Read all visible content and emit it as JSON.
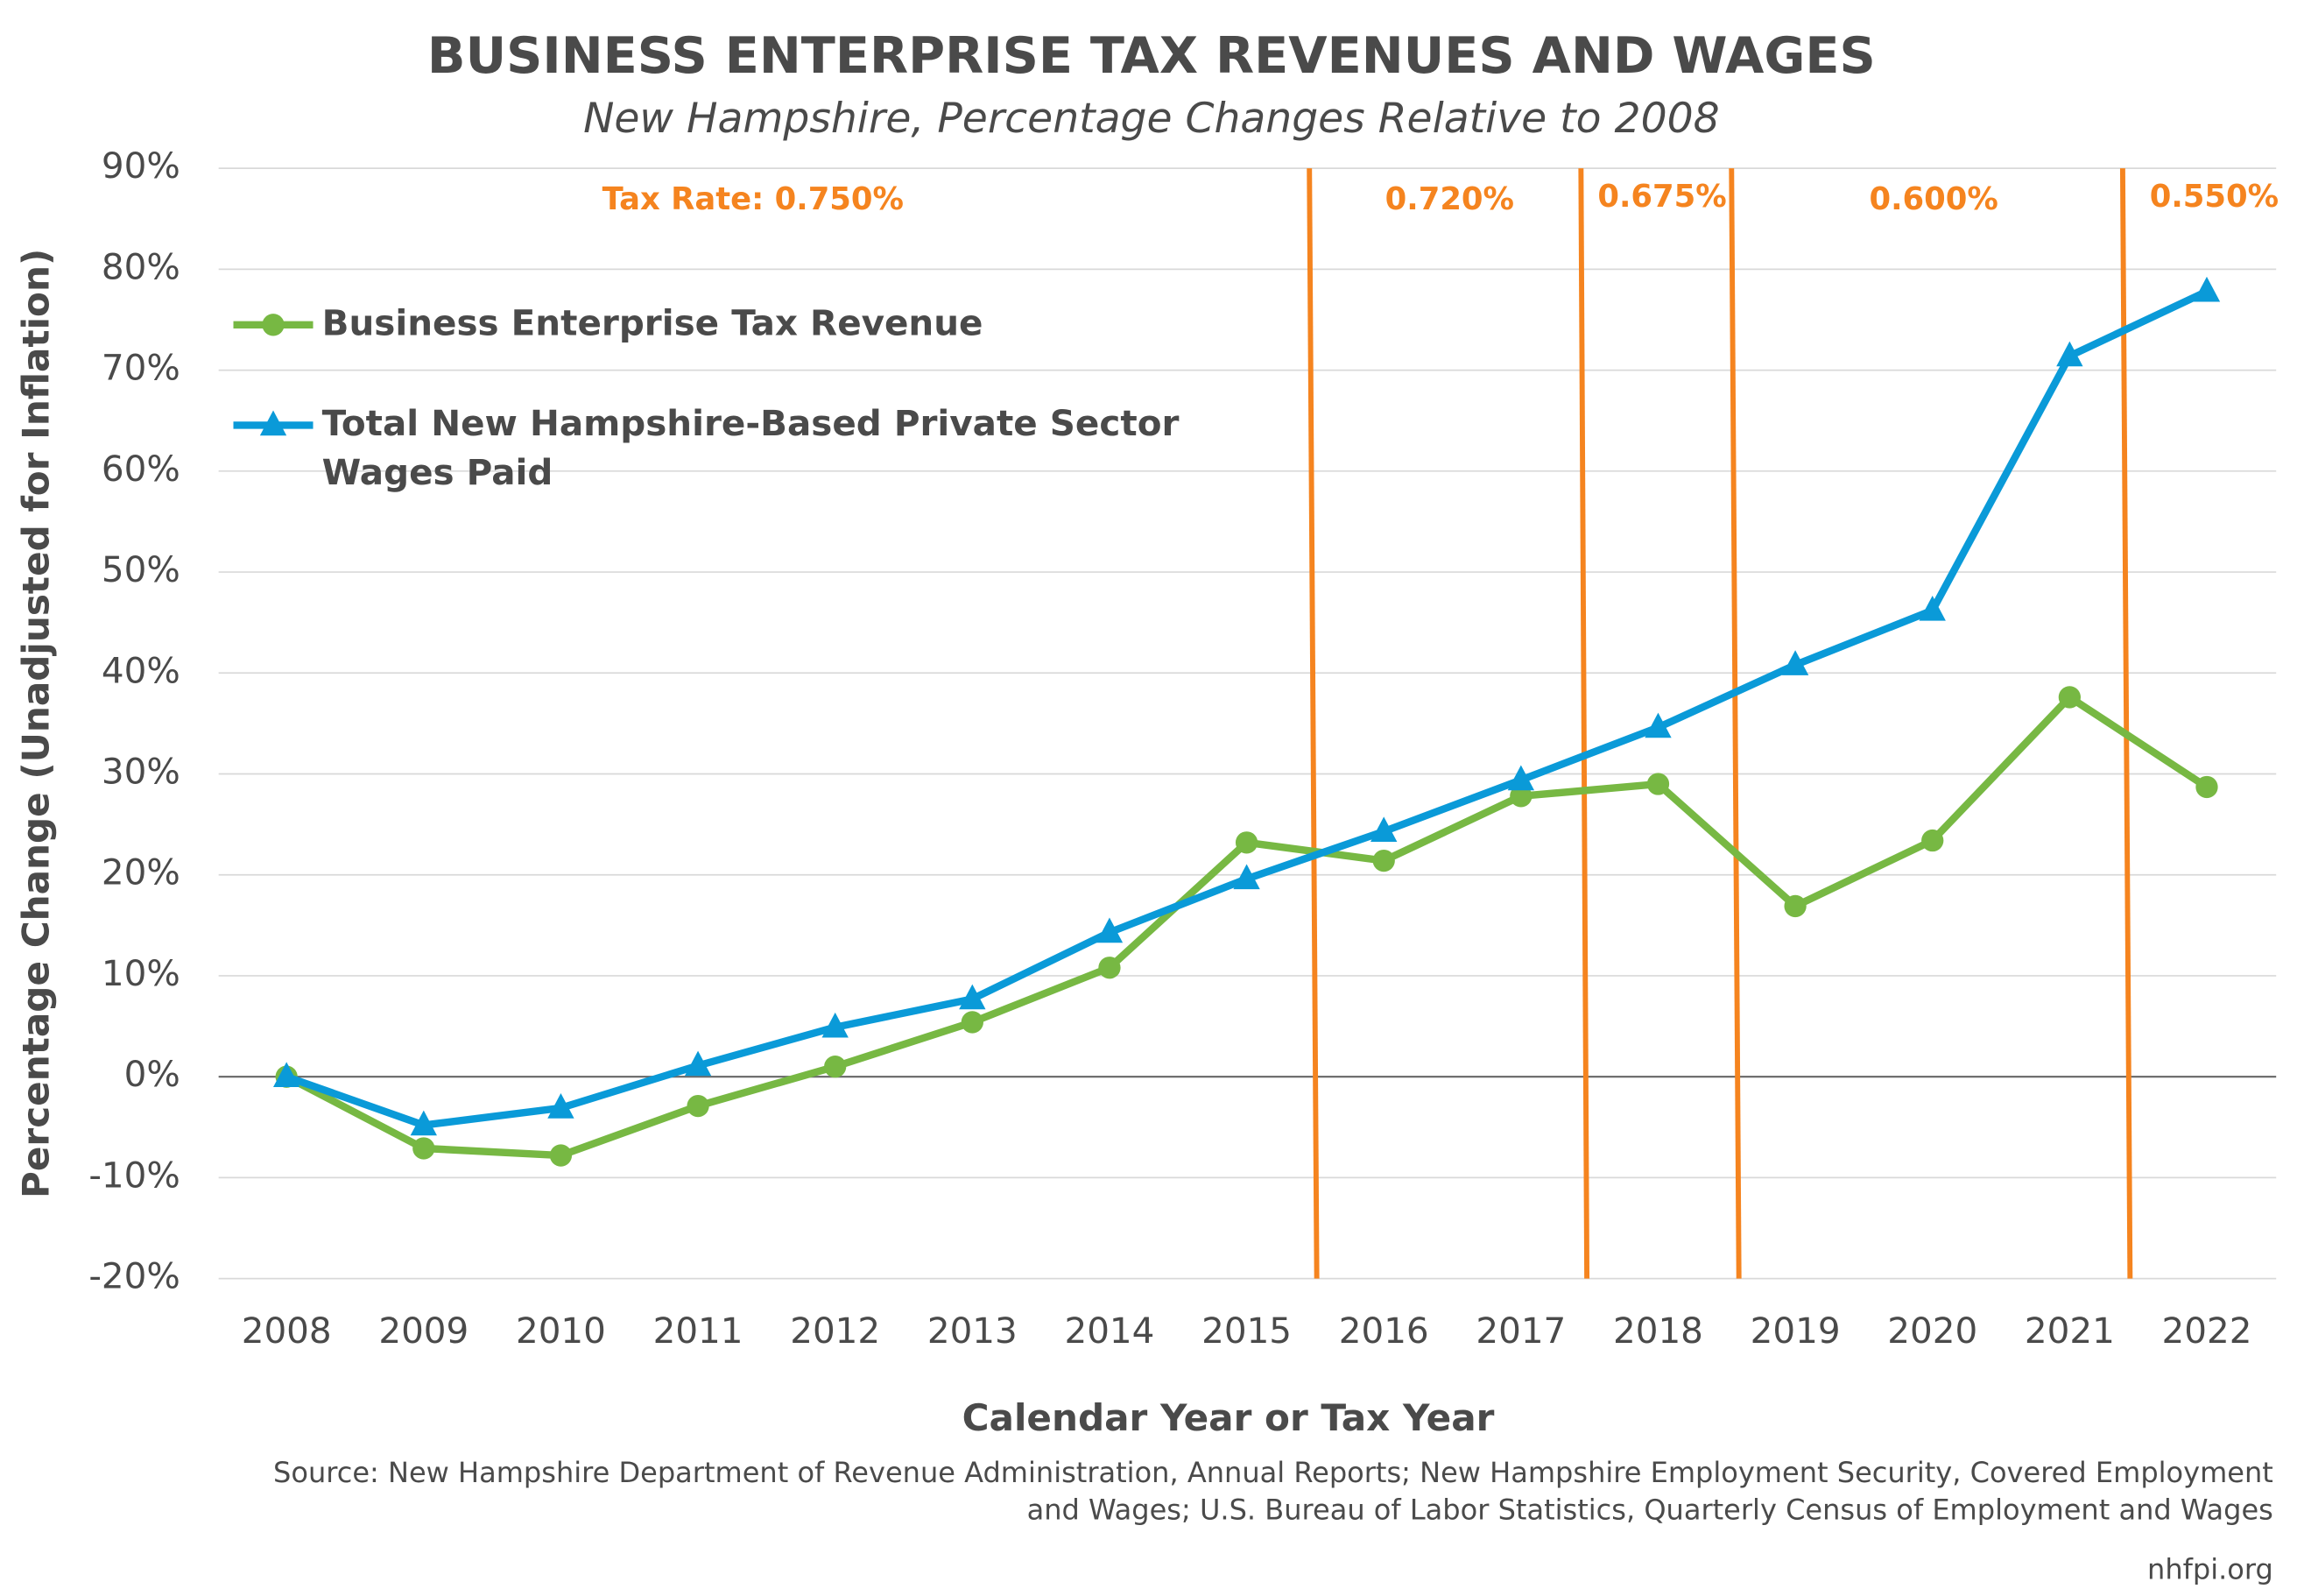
{
  "chart_data": {
    "type": "line",
    "title": "BUSINESS ENTERPRISE TAX REVENUES AND WAGES",
    "subtitle": "New Hampshire, Percentage Changes Relative to 2008",
    "x_label": "Calendar Year or Tax Year",
    "y_label": "Percentage Change (Unadjusted for Inflation)",
    "source": "Source: New Hampshire Department of Revenue Administration, Annual Reports; New Hampshire Employment Security, Covered Employment and Wages; U.S. Bureau of Labor Statistics, Quarterly Census of Employment and Wages",
    "credit": "nhfpi.org",
    "annotations": [
      "Tax Rate: 0.750%",
      "0.720%",
      "0.675%",
      "0.600%",
      "0.550%"
    ],
    "annotation_color": "#f5841f",
    "categories": [
      "2008",
      "2009",
      "2010",
      "2011",
      "2012",
      "2013",
      "2014",
      "2015",
      "2016",
      "2017",
      "2018",
      "2019",
      "2020",
      "2021",
      "2022"
    ],
    "series": [
      {
        "name": "Business Enterprise Tax Revenue",
        "color": "#77b843",
        "marker": "circle",
        "values": [
          0,
          -7.1,
          -7.8,
          -2.9,
          1.0,
          5.4,
          10.8,
          23.2,
          21.4,
          27.8,
          29.0,
          16.9,
          23.4,
          37.6,
          28.7
        ]
      },
      {
        "name": "Total New Hampshire-Based Private Sector Wages Paid",
        "color": "#0a9ad8",
        "marker": "triangle",
        "values": [
          0,
          -4.8,
          -3.1,
          1.1,
          4.9,
          7.7,
          14.3,
          19.6,
          24.3,
          29.4,
          34.6,
          40.8,
          46.2,
          71.4,
          77.8
        ]
      }
    ],
    "ylim": [
      -20,
      90
    ],
    "yticks": [
      {
        "value": -20,
        "label": "-20%"
      },
      {
        "value": -10,
        "label": "-10%"
      },
      {
        "value": 0,
        "label": "0%"
      },
      {
        "value": 10,
        "label": "10%"
      },
      {
        "value": 20,
        "label": "20%"
      },
      {
        "value": 30,
        "label": "30%"
      },
      {
        "value": 40,
        "label": "40%"
      },
      {
        "value": 50,
        "label": "50%"
      },
      {
        "value": 60,
        "label": "60%"
      },
      {
        "value": 70,
        "label": "70%"
      },
      {
        "value": 80,
        "label": "80%"
      },
      {
        "value": 90,
        "label": "90%"
      }
    ],
    "grid": true
  }
}
